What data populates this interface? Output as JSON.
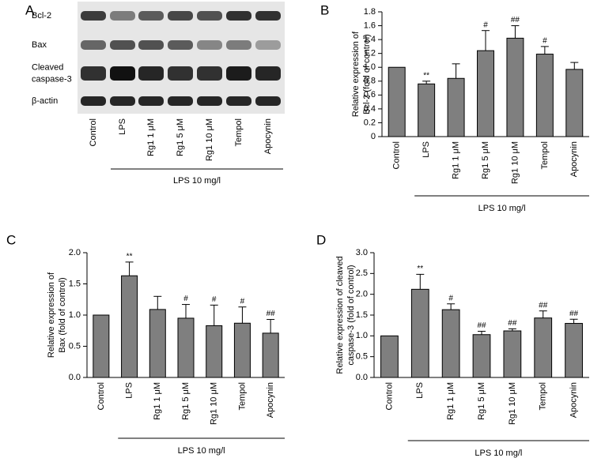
{
  "blot": {
    "panel": "A",
    "rows": [
      [
        "Bcl-2"
      ],
      [
        "Bax"
      ],
      [
        "Cleaved",
        "caspase-3"
      ],
      [
        "β-actin"
      ]
    ],
    "lanes": [
      "Control",
      "LPS",
      "Rg1 1 μM",
      "Rg1 5 μM",
      "Rg1 10 μM",
      "Tempol",
      "Apocynin"
    ],
    "group_label": "LPS 10 mg/l"
  },
  "chart_data": [
    {
      "type": "bar",
      "panel": "B",
      "ylabel": [
        "Relative expression of",
        "Bcl-2 (fold of control)"
      ],
      "categories": [
        "Control",
        "LPS",
        "Rg1 1 μM",
        "Rg1 5 μM",
        "Rg1 10 μM",
        "Tempol",
        "Apocynin"
      ],
      "values": [
        1.0,
        0.76,
        0.84,
        1.24,
        1.42,
        1.19,
        0.97
      ],
      "errors": [
        0,
        0.04,
        0.21,
        0.29,
        0.18,
        0.11,
        0.1
      ],
      "annotations": [
        null,
        "**",
        null,
        "#",
        "##",
        "#",
        null
      ],
      "group_label": "LPS 10 mg/l",
      "color": "#7f7f7f",
      "ylim": [
        0,
        1.8
      ],
      "yticks": [
        0,
        0.2,
        0.4,
        0.6,
        0.8,
        {
          "value": 1.0,
          "label": "1.0"
        },
        1.2,
        1.4,
        1.6,
        1.8
      ]
    },
    {
      "type": "bar",
      "panel": "C",
      "ylabel": [
        "Relative expression of",
        "Bax (fold of control)"
      ],
      "categories": [
        "Control",
        "LPS",
        "Rg1 1 μM",
        "Rg1 5 μM",
        "Rg1 10 μM",
        "Tempol",
        "Apocynin"
      ],
      "values": [
        1.0,
        1.63,
        1.09,
        0.95,
        0.83,
        0.87,
        0.71
      ],
      "errors": [
        0,
        0.22,
        0.21,
        0.22,
        0.33,
        0.26,
        0.22
      ],
      "annotations": [
        null,
        "**",
        null,
        "#",
        "#",
        "#",
        "##"
      ],
      "group_label": "LPS 10 mg/l",
      "color": "#7f7f7f",
      "ylim": [
        0,
        2.0
      ],
      "yticks": [
        {
          "value": 0,
          "label": "0.0"
        },
        0.5,
        {
          "value": 1.0,
          "label": "1.0"
        },
        1.5,
        {
          "value": 2.0,
          "label": "2.0"
        }
      ]
    },
    {
      "type": "bar",
      "panel": "D",
      "ylabel": [
        "Relative expression of cleaved",
        "caspase-3 (fold of control)"
      ],
      "categories": [
        "Control",
        "LPS",
        "Rg1 1 μM",
        "Rg1 5 μM",
        "Rg1 10 μM",
        "Tempol",
        "Apocynin"
      ],
      "values": [
        1.0,
        2.12,
        1.63,
        1.03,
        1.12,
        1.43,
        1.3
      ],
      "errors": [
        0,
        0.36,
        0.14,
        0.08,
        0.05,
        0.17,
        0.1
      ],
      "annotations": [
        null,
        "**",
        "#",
        "##",
        "##",
        "##",
        "##"
      ],
      "group_label": "LPS 10 mg/l",
      "color": "#7f7f7f",
      "ylim": [
        0,
        3.0
      ],
      "yticks": [
        {
          "value": 0,
          "label": "0.0"
        },
        0.5,
        {
          "value": 1.0,
          "label": "1.0"
        },
        1.5,
        {
          "value": 2.0,
          "label": "2.0"
        },
        2.5,
        {
          "value": 3.0,
          "label": "3.0"
        }
      ]
    }
  ]
}
